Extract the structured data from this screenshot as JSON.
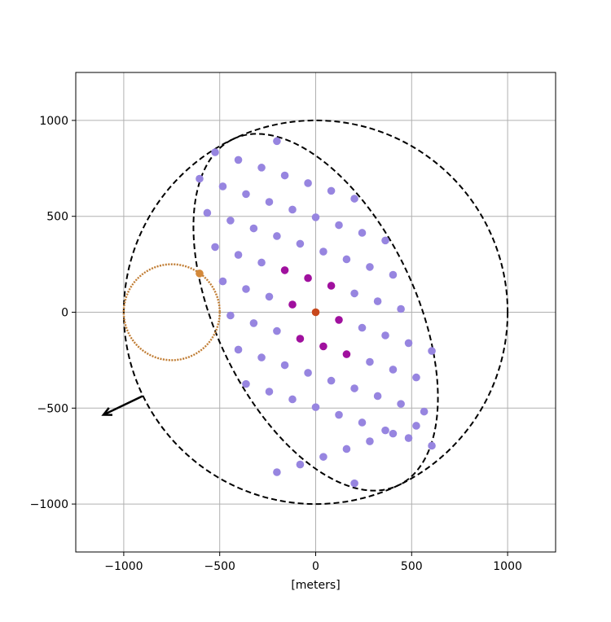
{
  "chart_data": {
    "type": "scatter",
    "title": "",
    "xlabel": "[meters]",
    "ylabel": "",
    "xlim": [
      -1250,
      1250
    ],
    "ylim": [
      -1250,
      1250
    ],
    "grid": true,
    "xticks": [
      -1000,
      -500,
      0,
      500,
      1000
    ],
    "yticks": [
      -1000,
      -500,
      0,
      500,
      1000
    ],
    "colors": {
      "lavender": "#9785e0",
      "purple": "#a0109e",
      "center": "#c8481c",
      "orange": "#d4893a",
      "dashed": "#000000",
      "grid": "#b0b0b0"
    },
    "points_lavender": [
      [
        -202,
        892
      ],
      [
        -524,
        834
      ],
      [
        -403,
        794
      ],
      [
        -282,
        754
      ],
      [
        -161,
        713
      ],
      [
        -40,
        673
      ],
      [
        81,
        633
      ],
      [
        202,
        592
      ],
      [
        -605,
        696
      ],
      [
        -484,
        656
      ],
      [
        -363,
        616
      ],
      [
        -242,
        575
      ],
      [
        -121,
        535
      ],
      [
        0,
        495
      ],
      [
        121,
        454
      ],
      [
        242,
        414
      ],
      [
        363,
        374
      ],
      [
        -565,
        518
      ],
      [
        -444,
        478
      ],
      [
        -323,
        437
      ],
      [
        -202,
        397
      ],
      [
        -81,
        357
      ],
      [
        40,
        316
      ],
      [
        161,
        276
      ],
      [
        282,
        236
      ],
      [
        403,
        195
      ],
      [
        -524,
        340
      ],
      [
        -403,
        299
      ],
      [
        -282,
        259
      ],
      [
        202,
        98
      ],
      [
        323,
        57
      ],
      [
        444,
        17
      ],
      [
        -484,
        161
      ],
      [
        -363,
        121
      ],
      [
        -242,
        81
      ],
      [
        242,
        -81
      ],
      [
        363,
        -121
      ],
      [
        484,
        -161
      ],
      [
        605,
        -202
      ],
      [
        -444,
        -17
      ],
      [
        -323,
        -57
      ],
      [
        -202,
        -98
      ],
      [
        282,
        -259
      ],
      [
        403,
        -299
      ],
      [
        524,
        -340
      ],
      [
        -403,
        -195
      ],
      [
        -282,
        -236
      ],
      [
        -161,
        -276
      ],
      [
        -40,
        -316
      ],
      [
        81,
        -357
      ],
      [
        202,
        -397
      ],
      [
        323,
        -437
      ],
      [
        444,
        -478
      ],
      [
        565,
        -518
      ],
      [
        -363,
        -374
      ],
      [
        -242,
        -414
      ],
      [
        -121,
        -454
      ],
      [
        0,
        -495
      ],
      [
        121,
        -535
      ],
      [
        242,
        -575
      ],
      [
        363,
        -616
      ],
      [
        484,
        -656
      ],
      [
        605,
        -696
      ],
      [
        -202,
        -834
      ],
      [
        -81,
        -794
      ],
      [
        40,
        -754
      ],
      [
        161,
        -713
      ],
      [
        282,
        -673
      ],
      [
        403,
        -633
      ],
      [
        524,
        -592
      ],
      [
        202,
        -892
      ]
    ],
    "points_purple": [
      [
        -161,
        219
      ],
      [
        -40,
        178
      ],
      [
        81,
        138
      ],
      [
        -121,
        40
      ],
      [
        121,
        -40
      ],
      [
        -81,
        -138
      ],
      [
        40,
        -178
      ],
      [
        161,
        -219
      ]
    ],
    "point_center": [
      0,
      0
    ],
    "point_orange": [
      -605,
      202
    ],
    "circle_outer": {
      "center": [
        0,
        0
      ],
      "radius": 1000,
      "style": "dashed"
    },
    "ellipse_inner": {
      "center": [
        0,
        0
      ],
      "semi_major": 1000,
      "semi_minor": 520,
      "angle_deg": 115.5,
      "style": "dashed"
    },
    "circle_orange": {
      "center": [
        -750,
        0
      ],
      "radius": 250,
      "style": "dotted"
    },
    "arrow": {
      "from": [
        -902,
        -437
      ],
      "to": [
        -1106,
        -535
      ]
    }
  }
}
